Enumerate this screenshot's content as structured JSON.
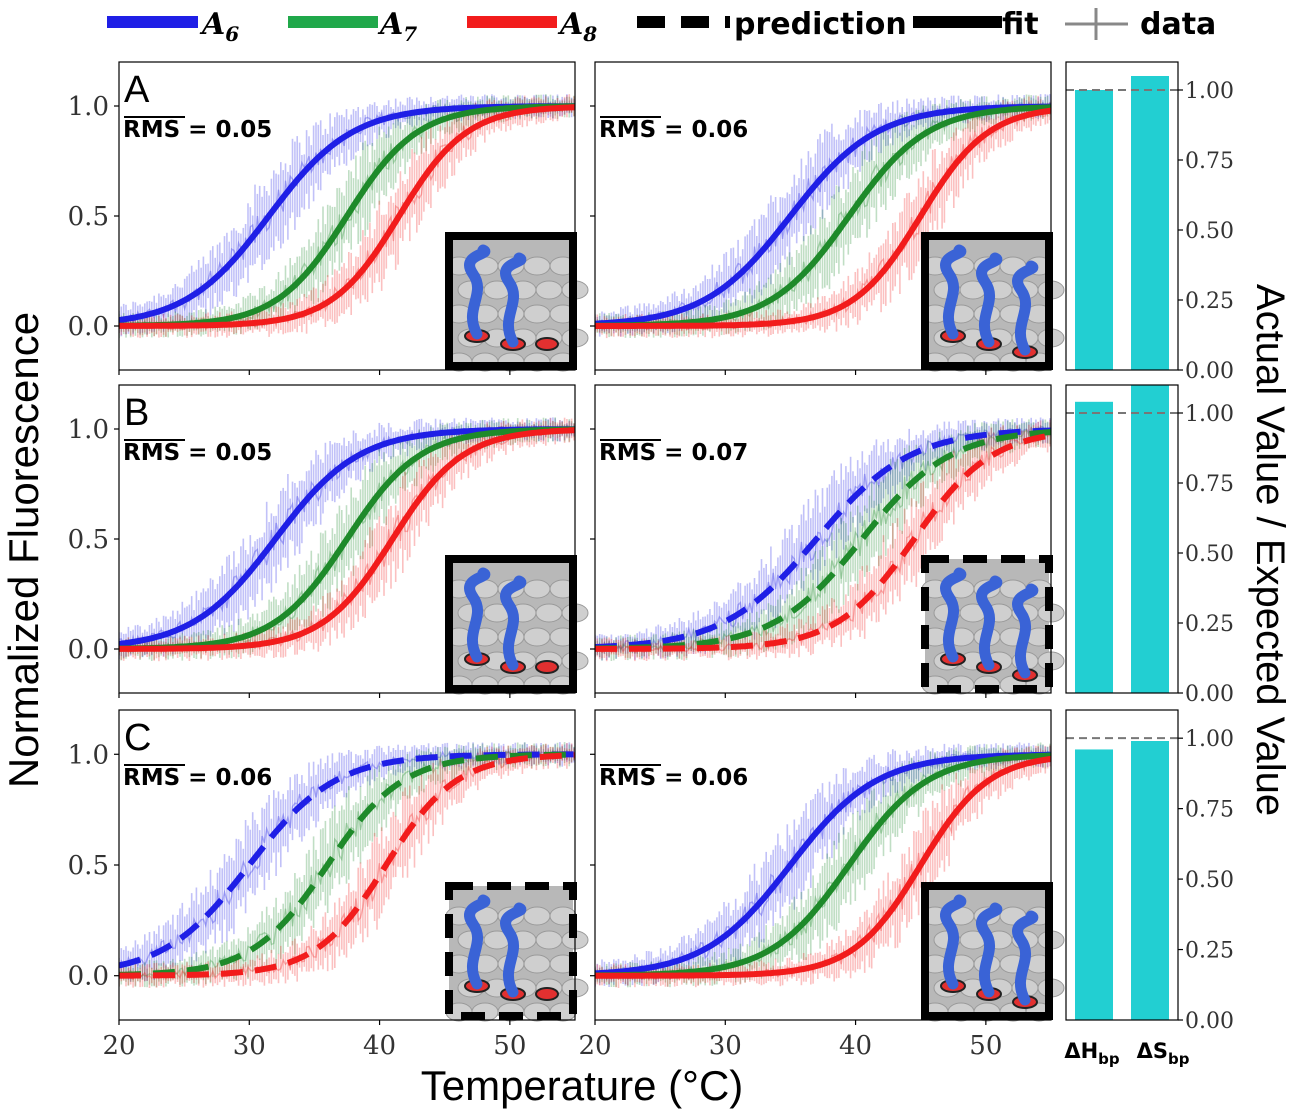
{
  "colors": {
    "A6": "#1f1fe6",
    "A7": "#1e8a2a",
    "A8": "#f21c1c",
    "A7_legend": "#20a84a",
    "bar": "#22cfd2",
    "refline": "#777777"
  },
  "legend": {
    "entries": [
      {
        "key": "A6",
        "base": "A",
        "sub": "6",
        "style": "solid"
      },
      {
        "key": "A7",
        "base": "A",
        "sub": "7",
        "style": "solid"
      },
      {
        "key": "A8",
        "base": "A",
        "sub": "8",
        "style": "solid"
      },
      {
        "key": "prediction",
        "label": "prediction",
        "style": "dashed"
      },
      {
        "key": "fit",
        "label": "fit",
        "style": "solid"
      },
      {
        "key": "data",
        "label": "data",
        "style": "data"
      }
    ]
  },
  "axes": {
    "ylabel_left": "Normalized Fluorescence",
    "xlabel": "Temperature (°C)",
    "ylabel_right": "Actual Value / Expected Value",
    "x_ticks": [
      "20",
      "30",
      "40",
      "50"
    ],
    "y_ticks": [
      "0.0",
      "0.5",
      "1.0"
    ],
    "bar_y_ticks": [
      "0.00",
      "0.25",
      "0.50",
      "0.75",
      "1.00"
    ]
  },
  "rms_label": "RMS",
  "chart_data": [
    {
      "type": "line",
      "row": "A",
      "col": 0,
      "rms": "0.05",
      "style": "fit",
      "inset": "solid",
      "x_range": [
        20,
        55
      ],
      "ylim": [
        -0.2,
        1.2
      ],
      "xlabel": "Temperature (°C)",
      "ylabel": "Normalized Fluorescence",
      "series": [
        {
          "name": "A6",
          "midpoint": 31.5,
          "width": 3.2
        },
        {
          "name": "A7",
          "midpoint": 37.5,
          "width": 2.7
        },
        {
          "name": "A8",
          "midpoint": 41.5,
          "width": 2.6
        }
      ]
    },
    {
      "type": "line",
      "row": "A",
      "col": 1,
      "rms": "0.06",
      "style": "fit",
      "inset": "solid",
      "x_range": [
        20,
        55
      ],
      "ylim": [
        -0.2,
        1.2
      ],
      "series": [
        {
          "name": "A6",
          "midpoint": 35.0,
          "width": 3.3
        },
        {
          "name": "A7",
          "midpoint": 39.5,
          "width": 3.0
        },
        {
          "name": "A8",
          "midpoint": 45.0,
          "width": 2.6
        }
      ]
    },
    {
      "type": "line",
      "row": "B",
      "col": 0,
      "rms": "0.05",
      "style": "fit",
      "inset": "solid",
      "x_range": [
        20,
        55
      ],
      "ylim": [
        -0.2,
        1.2
      ],
      "series": [
        {
          "name": "A6",
          "midpoint": 32.0,
          "width": 3.2
        },
        {
          "name": "A7",
          "midpoint": 37.5,
          "width": 2.8
        },
        {
          "name": "A8",
          "midpoint": 41.0,
          "width": 2.7
        }
      ]
    },
    {
      "type": "line",
      "row": "B",
      "col": 1,
      "rms": "0.07",
      "style": "prediction",
      "inset": "dashed",
      "x_range": [
        20,
        55
      ],
      "ylim": [
        -0.2,
        1.2
      ],
      "series": [
        {
          "name": "A6",
          "midpoint": 37.0,
          "width": 3.6
        },
        {
          "name": "A7",
          "midpoint": 40.5,
          "width": 3.4
        },
        {
          "name": "A8",
          "midpoint": 44.5,
          "width": 3.0
        }
      ]
    },
    {
      "type": "line",
      "row": "C",
      "col": 0,
      "rms": "0.06",
      "style": "prediction",
      "inset": "dashed",
      "x_range": [
        20,
        55
      ],
      "ylim": [
        -0.2,
        1.2
      ],
      "series": [
        {
          "name": "A6",
          "midpoint": 30.0,
          "width": 3.3
        },
        {
          "name": "A7",
          "midpoint": 36.0,
          "width": 2.9
        },
        {
          "name": "A8",
          "midpoint": 40.5,
          "width": 2.7
        }
      ]
    },
    {
      "type": "line",
      "row": "C",
      "col": 1,
      "rms": "0.06",
      "style": "fit",
      "inset": "solid",
      "x_range": [
        20,
        55
      ],
      "ylim": [
        -0.2,
        1.2
      ],
      "series": [
        {
          "name": "A6",
          "midpoint": 35.0,
          "width": 3.3
        },
        {
          "name": "A7",
          "midpoint": 39.5,
          "width": 3.0
        },
        {
          "name": "A8",
          "midpoint": 45.0,
          "width": 2.6
        }
      ]
    },
    {
      "type": "bar",
      "row": "A",
      "categories": [
        "ΔH_bp",
        "ΔS_bp"
      ],
      "values": [
        1.0,
        1.05
      ],
      "ylim": [
        0,
        1.1
      ],
      "reference": 1.0,
      "ylabel": "Actual Value / Expected Value"
    },
    {
      "type": "bar",
      "row": "B",
      "categories": [
        "ΔH_bp",
        "ΔS_bp"
      ],
      "values": [
        1.04,
        1.1
      ],
      "ylim": [
        0,
        1.1
      ],
      "reference": 1.0
    },
    {
      "type": "bar",
      "row": "C",
      "categories": [
        "ΔH_bp",
        "ΔS_bp"
      ],
      "values": [
        0.96,
        0.99
      ],
      "ylim": [
        0,
        1.1
      ],
      "reference": 1.0
    }
  ],
  "bar_categories": [
    {
      "base": "ΔH",
      "sub": "bp"
    },
    {
      "base": "ΔS",
      "sub": "bp"
    }
  ]
}
